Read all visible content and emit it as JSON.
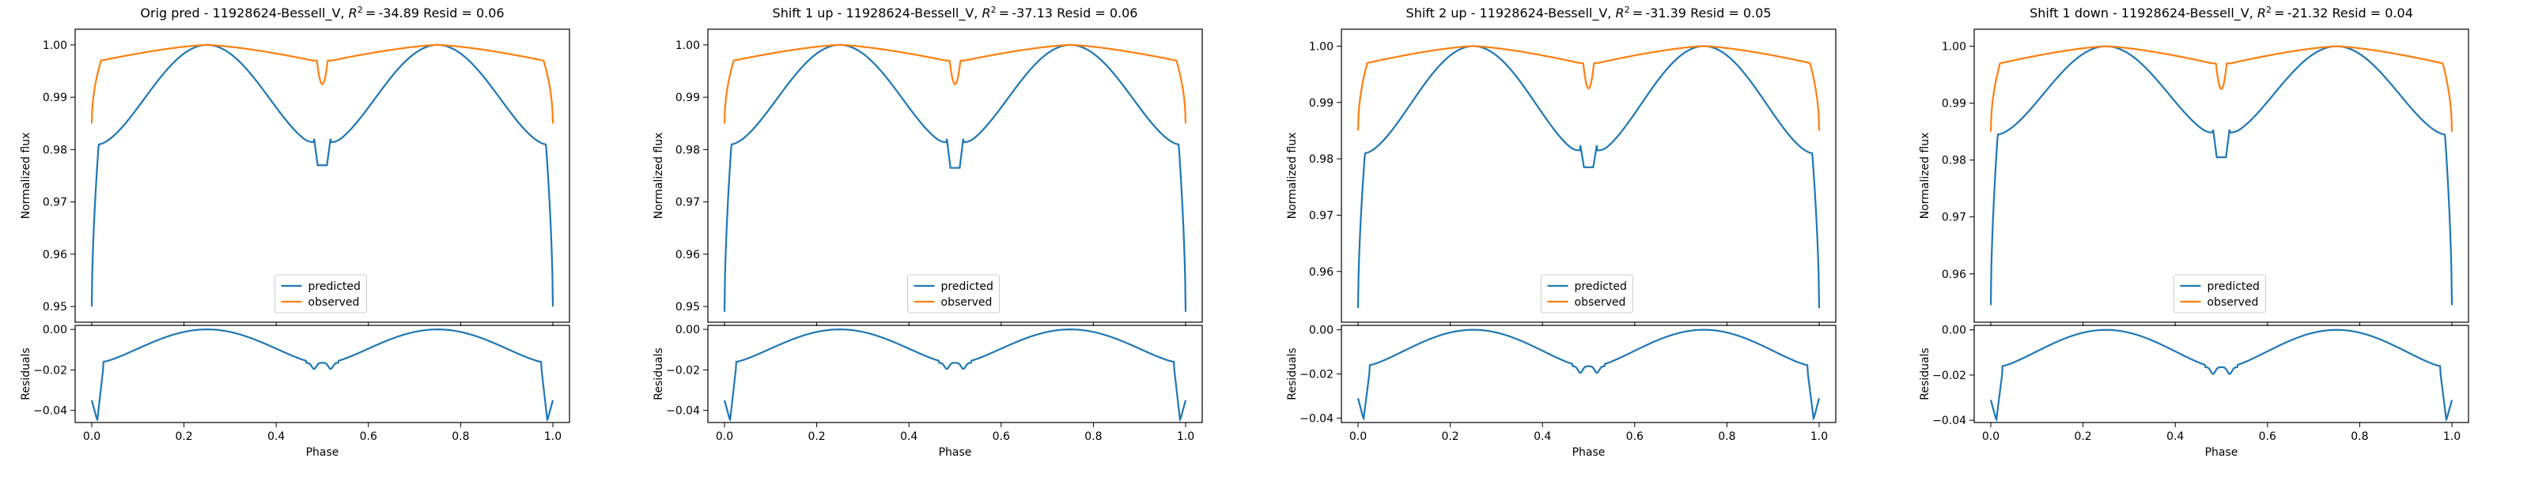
{
  "figure": {
    "colors": {
      "predicted": "#1f77b4",
      "observed": "#ff7f0e",
      "axes": "#000000",
      "background": "#ffffff"
    }
  },
  "chart_data": [
    {
      "type": "line",
      "title_prefix": "Orig pred - 11928624-Bessell_V, ",
      "r2": "-34.89",
      "resid": "0.06",
      "ylabel": "Normalized flux",
      "ylim": [
        0.947,
        1.003
      ],
      "yticks": [
        "0.95",
        "0.96",
        "0.97",
        "0.98",
        "0.99",
        "1.00"
      ],
      "ytick_values": [
        0.95,
        0.96,
        0.97,
        0.98,
        0.99,
        1.0
      ],
      "legend": {
        "position": "lower center",
        "entries": [
          "predicted",
          "observed"
        ]
      },
      "predicted_params": {
        "x": [
          0,
          0.015,
          0.035,
          0.25,
          0.47,
          0.485,
          0.5,
          0.515,
          0.53,
          0.75,
          0.965,
          0.985,
          1.0
        ],
        "min": 0.95,
        "edge": 0.981,
        "max": 1.0,
        "dip_base": 0.9822,
        "dip_floor": 0.977
      },
      "observed_params": {
        "start": 0.985,
        "flat": 0.997,
        "max": 1.0,
        "dip_floor": 0.9925
      },
      "residual": {
        "xlabel": "Phase",
        "ylabel": "Residuals",
        "ylim": [
          -0.046,
          0.002
        ],
        "yticks": [
          "0.00",
          "−0.02",
          "−0.04"
        ],
        "ytick_values": [
          0.0,
          -0.02,
          -0.04
        ],
        "xticks": [
          "0.0",
          "0.2",
          "0.4",
          "0.6",
          "0.8",
          "1.0"
        ],
        "xtick_values": [
          0,
          0.2,
          0.4,
          0.6,
          0.8,
          1.0
        ],
        "start": -0.035,
        "min": -0.045,
        "shoulder": -0.016,
        "dip_base": -0.0165,
        "dip_min": -0.0195
      }
    },
    {
      "type": "line",
      "title_prefix": "Shift 1 up - 11928624-Bessell_V, ",
      "r2": "-37.13",
      "resid": "0.06",
      "ylabel": "Normalized flux",
      "ylim": [
        0.947,
        1.003
      ],
      "yticks": [
        "0.95",
        "0.96",
        "0.97",
        "0.98",
        "0.99",
        "1.00"
      ],
      "ytick_values": [
        0.95,
        0.96,
        0.97,
        0.98,
        0.99,
        1.0
      ],
      "legend": {
        "position": "lower center",
        "entries": [
          "predicted",
          "observed"
        ]
      },
      "predicted_params": {
        "x": [
          0,
          0.015,
          0.035,
          0.25,
          0.47,
          0.485,
          0.5,
          0.515,
          0.53,
          0.75,
          0.965,
          0.985,
          1.0
        ],
        "min": 0.949,
        "edge": 0.981,
        "max": 1.0,
        "dip_base": 0.9822,
        "dip_floor": 0.9765
      },
      "observed_params": {
        "start": 0.985,
        "flat": 0.997,
        "max": 1.0,
        "dip_floor": 0.9925
      },
      "residual": {
        "xlabel": "Phase",
        "ylabel": "Residuals",
        "ylim": [
          -0.046,
          0.002
        ],
        "yticks": [
          "0.00",
          "−0.02",
          "−0.04"
        ],
        "ytick_values": [
          0.0,
          -0.02,
          -0.04
        ],
        "xticks": [
          "0.0",
          "0.2",
          "0.4",
          "0.6",
          "0.8",
          "1.0"
        ],
        "xtick_values": [
          0,
          0.2,
          0.4,
          0.6,
          0.8,
          1.0
        ],
        "start": -0.035,
        "min": -0.045,
        "shoulder": -0.016,
        "dip_base": -0.0165,
        "dip_min": -0.0195
      }
    },
    {
      "type": "line",
      "title_prefix": "Shift 2 up - 11928624-Bessell_V, ",
      "r2": "-31.39",
      "resid": "0.05",
      "ylabel": "Normalized flux",
      "ylim": [
        0.951,
        1.003
      ],
      "yticks": [
        "0.96",
        "0.97",
        "0.98",
        "0.99",
        "1.00"
      ],
      "ytick_values": [
        0.96,
        0.97,
        0.98,
        0.99,
        1.0
      ],
      "legend": {
        "position": "lower center",
        "entries": [
          "predicted",
          "observed"
        ]
      },
      "predicted_params": {
        "x": [
          0,
          0.015,
          0.035,
          0.25,
          0.47,
          0.485,
          0.5,
          0.515,
          0.53,
          0.75,
          0.965,
          0.985,
          1.0
        ],
        "min": 0.9535,
        "edge": 0.981,
        "max": 1.0,
        "dip_base": 0.9825,
        "dip_floor": 0.9785
      },
      "observed_params": {
        "start": 0.985,
        "flat": 0.997,
        "max": 1.0,
        "dip_floor": 0.9925
      },
      "residual": {
        "xlabel": "Phase",
        "ylabel": "Residuals",
        "ylim": [
          -0.042,
          0.002
        ],
        "yticks": [
          "0.00",
          "−0.02",
          "−0.04"
        ],
        "ytick_values": [
          0.0,
          -0.02,
          -0.04
        ],
        "xticks": [
          "0.0",
          "0.2",
          "0.4",
          "0.6",
          "0.8",
          "1.0"
        ],
        "xtick_values": [
          0,
          0.2,
          0.4,
          0.6,
          0.8,
          1.0
        ],
        "start": -0.031,
        "min": -0.0405,
        "shoulder": -0.016,
        "dip_base": -0.0165,
        "dip_min": -0.0195
      }
    },
    {
      "type": "line",
      "title_prefix": "Shift 1 down - 11928624-Bessell_V, ",
      "r2": "-21.32",
      "resid": "0.04",
      "ylabel": "Normalized flux",
      "ylim": [
        0.9515,
        1.003
      ],
      "yticks": [
        "0.96",
        "0.97",
        "0.98",
        "0.99",
        "1.00"
      ],
      "ytick_values": [
        0.96,
        0.97,
        0.98,
        0.99,
        1.0
      ],
      "legend": {
        "position": "lower center",
        "entries": [
          "predicted",
          "observed"
        ]
      },
      "predicted_params": {
        "x": [
          0,
          0.015,
          0.035,
          0.25,
          0.47,
          0.485,
          0.5,
          0.515,
          0.53,
          0.75,
          0.965,
          0.985,
          1.0
        ],
        "min": 0.9545,
        "edge": 0.9845,
        "max": 1.0,
        "dip_base": 0.9855,
        "dip_floor": 0.9805
      },
      "observed_params": {
        "start": 0.985,
        "flat": 0.997,
        "max": 1.0,
        "dip_floor": 0.9925
      },
      "residual": {
        "xlabel": "Phase",
        "ylabel": "Residuals",
        "ylim": [
          -0.041,
          0.002
        ],
        "yticks": [
          "0.00",
          "−0.02",
          "−0.04"
        ],
        "ytick_values": [
          0.0,
          -0.02,
          -0.04
        ],
        "xticks": [
          "0.0",
          "0.2",
          "0.4",
          "0.6",
          "0.8",
          "1.0"
        ],
        "xtick_values": [
          0,
          0.2,
          0.4,
          0.6,
          0.8,
          1.0
        ],
        "start": -0.031,
        "min": -0.04,
        "shoulder": -0.016,
        "dip_base": -0.0165,
        "dip_min": -0.0195
      }
    }
  ]
}
